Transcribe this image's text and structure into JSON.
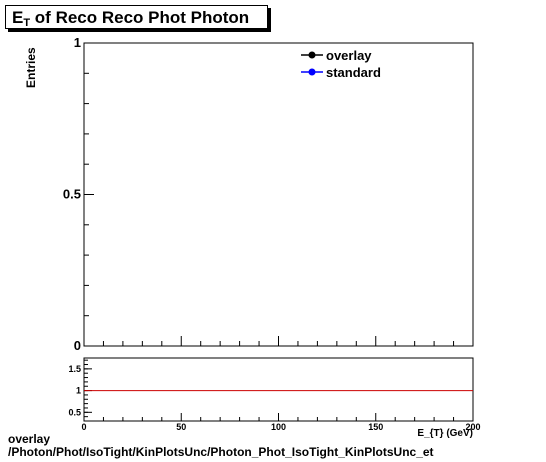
{
  "chart_data": [
    {
      "type": "line",
      "title_main": "E",
      "title_sub": "T",
      "title_rest": " of Reco Reco Phot Photon",
      "ylabel": "Entries",
      "xlim": [
        0,
        200
      ],
      "ylim": [
        0,
        1
      ],
      "y_ticks": [
        {
          "value": 0,
          "label": "0"
        },
        {
          "value": 0.5,
          "label": "0.5"
        },
        {
          "value": 1,
          "label": "1"
        }
      ],
      "legend": {
        "placement": "top-right",
        "entries": [
          {
            "label": "overlay",
            "color": "#000000"
          },
          {
            "label": "standard",
            "color": "#0000ff"
          }
        ]
      },
      "series": []
    },
    {
      "type": "line",
      "xlabel": "E_{T} (GeV)",
      "xlim": [
        0,
        200
      ],
      "ylim": [
        0.3,
        1.75
      ],
      "x_ticks": [
        {
          "value": 0,
          "label": "0"
        },
        {
          "value": 50,
          "label": "50"
        },
        {
          "value": 100,
          "label": "100"
        },
        {
          "value": 150,
          "label": "150"
        },
        {
          "value": 200,
          "label": "200"
        }
      ],
      "y_ticks": [
        {
          "value": 0.5,
          "label": "0.5"
        },
        {
          "value": 1,
          "label": "1"
        },
        {
          "value": 1.5,
          "label": "1.5"
        }
      ],
      "reference_line": {
        "y": 1,
        "color": "#cc0000"
      }
    }
  ],
  "footer": {
    "line1": "overlay",
    "line2": "/Photon/Phot/IsoTight/KinPlotsUnc/Photon_Phot_IsoTight_KinPlotsUnc_et"
  }
}
